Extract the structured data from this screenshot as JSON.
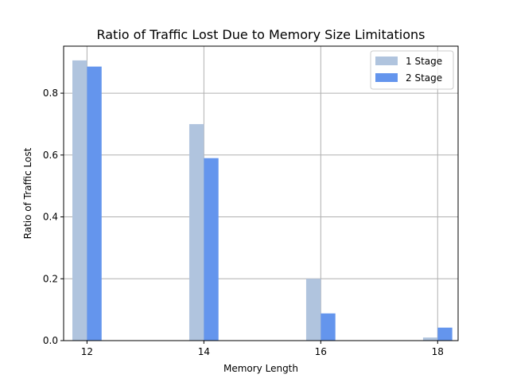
{
  "chart_data": {
    "type": "bar",
    "title": "Ratio of Traffic Lost Due to Memory Size Limitations",
    "xlabel": "Memory Length",
    "ylabel": "Ratio of Traffic Lost",
    "categories": [
      12,
      14,
      16,
      18
    ],
    "xlim": [
      11.6,
      18.35
    ],
    "ylim": [
      0,
      0.952
    ],
    "xticks": [
      "12",
      "14",
      "16",
      "18"
    ],
    "yticks": [
      "0.0",
      "0.2",
      "0.4",
      "0.6",
      "0.8"
    ],
    "bar_width": 0.25,
    "grid": true,
    "legend_position": "upper right",
    "series": [
      {
        "name": "1 Stage",
        "color": "#b0c4de",
        "values": [
          0.906,
          0.7,
          0.2,
          0.01
        ]
      },
      {
        "name": "2 Stage",
        "color": "#6495ed",
        "values": [
          0.886,
          0.59,
          0.088,
          0.042
        ]
      }
    ]
  }
}
